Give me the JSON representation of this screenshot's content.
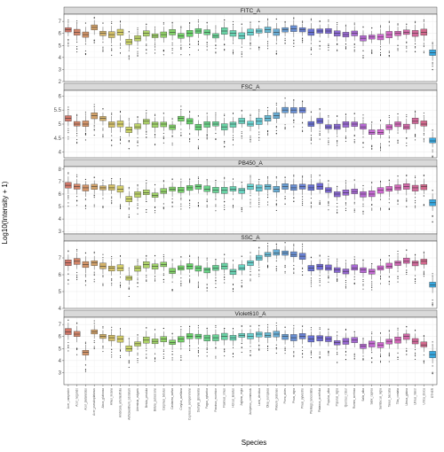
{
  "chart_data": {
    "type": "boxplot",
    "xlabel": "Species",
    "ylabel": "Log10(Intensity + 1)",
    "grid": true,
    "legend": "none",
    "categories": [
      "Acer_campestre",
      "Acer_negundo",
      "Acer_platanoides",
      "Acer_pseudoplatanus",
      "Alnus_glutinosa",
      "Alnus_incana",
      "Ambrosia_artemisiifolia",
      "Anthoxanthum_odoratum",
      "Artemisia_vulgaris",
      "Betula_pendula",
      "Betula_pubescens",
      "Carpinus_betulus",
      "Castanea_sativa",
      "Corylus_avellana",
      "Cupressus_sempervirens",
      "Dactylis_glomerata",
      "Fagus_sylvatica",
      "Fraxinus_excelsior",
      "Fraxinus_ornus",
      "Holcus_lanatus",
      "Juglans_regia",
      "Juniperus_communis",
      "Larix_decidua",
      "Olea_europaea",
      "Phleum_pratense",
      "Picea_abies",
      "Pinus_nigra",
      "Pinus_sylvestris",
      "Plantago_lanceolata",
      "Platanus_acerifolia",
      "Populus_alba",
      "Populus_nigra",
      "Quercus_robur",
      "Rumex_acetosa",
      "Salix_alba",
      "Salix_caprea",
      "Sambucus_nigra",
      "Taxus_baccata",
      "Tilia_cordata",
      "Ulmus_glabra",
      "Ulmus_minor",
      "Urtica_dioica",
      "OTHER"
    ],
    "panels": [
      {
        "title": "FITC_A",
        "ylim": [
          2,
          7.6
        ],
        "yticks": [
          2,
          3,
          4,
          5,
          6,
          7
        ],
        "medians": [
          6.3,
          6.1,
          5.9,
          6.5,
          6.0,
          5.9,
          6.1,
          5.3,
          5.6,
          6.0,
          5.8,
          5.9,
          6.1,
          5.8,
          6.0,
          6.2,
          6.1,
          5.8,
          6.2,
          6.0,
          5.8,
          6.1,
          6.2,
          6.3,
          6.1,
          6.3,
          6.4,
          6.3,
          6.1,
          6.2,
          6.2,
          6.0,
          5.9,
          6.0,
          5.6,
          5.7,
          5.7,
          5.9,
          6.0,
          6.1,
          6.0,
          6.1,
          4.4
        ]
      },
      {
        "title": "FSC_A",
        "ylim": [
          3.8,
          6.2
        ],
        "yticks": [
          4.0,
          4.5,
          5.0,
          5.5,
          6.0
        ],
        "medians": [
          5.2,
          5.0,
          5.0,
          5.3,
          5.2,
          5.0,
          5.0,
          4.8,
          4.9,
          5.1,
          5.0,
          5.0,
          4.9,
          5.2,
          5.1,
          4.9,
          5.0,
          5.0,
          4.9,
          5.0,
          5.1,
          5.0,
          5.1,
          5.2,
          5.3,
          5.5,
          5.5,
          5.5,
          5.0,
          5.1,
          4.9,
          4.9,
          5.0,
          5.0,
          4.9,
          4.7,
          4.7,
          4.9,
          5.0,
          4.9,
          5.1,
          5.0,
          4.4
        ]
      },
      {
        "title": "PB450_A",
        "ylim": [
          2.8,
          8.2
        ],
        "yticks": [
          3,
          4,
          5,
          6,
          7,
          8
        ],
        "medians": [
          6.7,
          6.6,
          6.5,
          6.6,
          6.5,
          6.5,
          6.4,
          5.6,
          6.0,
          6.1,
          5.9,
          6.2,
          6.4,
          6.3,
          6.5,
          6.6,
          6.4,
          6.3,
          6.3,
          6.4,
          6.3,
          6.6,
          6.5,
          6.6,
          6.4,
          6.6,
          6.5,
          6.6,
          6.5,
          6.6,
          6.3,
          6.0,
          6.1,
          6.2,
          6.0,
          6.0,
          6.3,
          6.4,
          6.5,
          6.6,
          6.5,
          6.6,
          5.3
        ]
      },
      {
        "title": "SSC_A",
        "ylim": [
          4,
          8
        ],
        "yticks": [
          4,
          5,
          6,
          7
        ],
        "medians": [
          6.7,
          6.8,
          6.6,
          6.7,
          6.5,
          6.4,
          6.4,
          5.8,
          6.4,
          6.6,
          6.5,
          6.6,
          6.2,
          6.4,
          6.5,
          6.4,
          6.3,
          6.4,
          6.5,
          6.2,
          6.4,
          6.7,
          7.0,
          7.2,
          7.3,
          7.3,
          7.2,
          7.1,
          6.4,
          6.5,
          6.4,
          6.3,
          6.2,
          6.4,
          6.3,
          6.2,
          6.4,
          6.5,
          6.7,
          6.8,
          6.7,
          6.8,
          5.4
        ]
      },
      {
        "title": "Violet610_A",
        "ylim": [
          2,
          7.6
        ],
        "yticks": [
          3,
          4,
          5,
          6,
          7
        ],
        "medians": [
          6.4,
          6.2,
          4.7,
          6.4,
          6.0,
          5.9,
          5.8,
          5.0,
          5.4,
          5.7,
          5.6,
          5.8,
          5.5,
          5.8,
          6.0,
          6.0,
          5.9,
          5.9,
          6.0,
          5.9,
          6.1,
          6.0,
          6.2,
          6.1,
          6.2,
          6.0,
          5.9,
          6.0,
          5.8,
          5.9,
          5.8,
          5.5,
          5.6,
          5.7,
          5.2,
          5.4,
          5.3,
          5.6,
          5.7,
          6.0,
          5.6,
          5.3,
          4.5
        ]
      }
    ],
    "tick_labels_x": [
      "Acer_campestre",
      "Acer_negundo",
      "Acer_platanoides",
      "Acer_pseudoplatanus",
      "Alnus_glutinosa",
      "Alnus_incana",
      "Ambrosia_artemisiifolia",
      "Anthoxanthum_odoratum",
      "Artemisia_vulgaris",
      "Betula_pendula",
      "Betula_pubescens",
      "Carpinus_betulus",
      "Castanea_sativa",
      "Corylus_avellana",
      "Cupressus_sempervirens",
      "Dactylis_glomerata",
      "Fagus_sylvatica",
      "Fraxinus_excelsior",
      "Fraxinus_ornus",
      "Holcus_lanatus",
      "Juglans_regia",
      "Juniperus_communis",
      "Larix_decidua",
      "Olea_europaea",
      "Phleum_pratense",
      "Picea_abies",
      "Pinus_nigra",
      "Pinus_sylvestris",
      "Plantago_lanceolata",
      "Platanus_acerifolia",
      "Populus_alba",
      "Populus_nigra",
      "Quercus_robur",
      "Rumex_acetosa",
      "Salix_alba",
      "Salix_caprea",
      "Sambucus_nigra",
      "Taxus_baccata",
      "Tilia_cordata",
      "Ulmus_glabra",
      "Ulmus_minor",
      "Urtica_dioica",
      "OTHER"
    ],
    "colors": {
      "panel_bg": "#ffffff",
      "grid_major": "#ebebeb",
      "grid_minor": "#f5f5f5",
      "strip_bg": "#d9d9d9",
      "panel_border": "#333333",
      "median_line": "#333333",
      "outlier": "#222222"
    }
  }
}
